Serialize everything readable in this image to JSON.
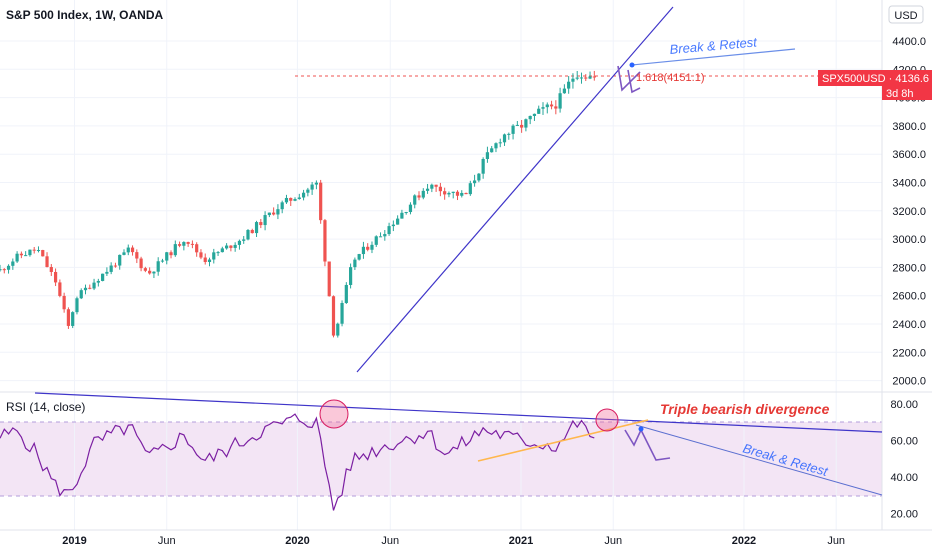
{
  "header": {
    "title": "S&P 500 Index, 1W, OANDA",
    "currency_button": "USD"
  },
  "price_scale": {
    "ticks": [
      "4400.0",
      "4200.0",
      "4000.0",
      "3800.0",
      "3600.0",
      "3400.0",
      "3200.0",
      "3000.0",
      "2800.0",
      "2600.0",
      "2400.0",
      "2200.0",
      "2000.0"
    ],
    "last_price_label": "SPX500USD · 4136.6",
    "countdown_label": "3d 8h"
  },
  "rsi_pane": {
    "label": "RSI (14, close)",
    "ticks": [
      "80.00",
      "60.00",
      "40.00",
      "20.00"
    ]
  },
  "time_axis": {
    "ticks": [
      "2019",
      "Jun",
      "2020",
      "Jun",
      "2021",
      "Jun",
      "2022",
      "Jun"
    ]
  },
  "annotations": {
    "break_retest_price": "Break & Retest",
    "break_retest_rsi": "Break & Retest",
    "divergence": "Triple bearish divergence",
    "fib_level": "1.618(4151.1)"
  },
  "colors": {
    "up": "#26a69a",
    "down": "#ef5350",
    "trendline": "#3f35c9",
    "rsi_line": "#7b1fa2",
    "rsi_band": "#f3e5f5",
    "price_tag": "#f23645",
    "orange_line": "#ffb74d"
  },
  "chart_data": [
    {
      "type": "candlestick",
      "title": "S&P 500 Index, 1W, OANDA",
      "x_range": [
        "2018-09",
        "2022-08"
      ],
      "ylim": [
        1950,
        4500
      ],
      "last_price": 4136.6,
      "fib_extension": 4151.1,
      "anchors": [
        {
          "date": "2018-09",
          "close": 2780
        },
        {
          "date": "2018-10",
          "close": 2880
        },
        {
          "date": "2018-11",
          "close": 2930
        },
        {
          "date": "2018-12",
          "close": 2700
        },
        {
          "date": "2018-12-24",
          "close": 2350
        },
        {
          "date": "2019-01",
          "close": 2580
        },
        {
          "date": "2019-03",
          "close": 2800
        },
        {
          "date": "2019-04",
          "close": 2930
        },
        {
          "date": "2019-05",
          "close": 2750
        },
        {
          "date": "2019-07",
          "close": 3010
        },
        {
          "date": "2019-08",
          "close": 2850
        },
        {
          "date": "2019-10",
          "close": 3000
        },
        {
          "date": "2019-12",
          "close": 3230
        },
        {
          "date": "2020-02",
          "close": 3390
        },
        {
          "date": "2020-03",
          "close": 2300
        },
        {
          "date": "2020-04",
          "close": 2850
        },
        {
          "date": "2020-06",
          "close": 3100
        },
        {
          "date": "2020-08",
          "close": 3380
        },
        {
          "date": "2020-10",
          "close": 3300
        },
        {
          "date": "2020-11",
          "close": 3550
        },
        {
          "date": "2020-12",
          "close": 3730
        },
        {
          "date": "2021-01",
          "close": 3800
        },
        {
          "date": "2021-02",
          "close": 3900
        },
        {
          "date": "2021-03",
          "close": 3960
        },
        {
          "date": "2021-04",
          "close": 4180
        },
        {
          "date": "2021-05",
          "close": 4137
        }
      ]
    },
    {
      "type": "line",
      "title": "RSI (14, close)",
      "ylim": [
        15,
        85
      ],
      "bands": [
        30,
        70
      ],
      "anchors": [
        {
          "date": "2018-09",
          "rsi": 62
        },
        {
          "date": "2018-10",
          "rsi": 65
        },
        {
          "date": "2018-11",
          "rsi": 52
        },
        {
          "date": "2018-12",
          "rsi": 35
        },
        {
          "date": "2018-12-24",
          "rsi": 30
        },
        {
          "date": "2019-02",
          "rsi": 58
        },
        {
          "date": "2019-04",
          "rsi": 68
        },
        {
          "date": "2019-05",
          "rsi": 50
        },
        {
          "date": "2019-07",
          "rsi": 63
        },
        {
          "date": "2019-08",
          "rsi": 48
        },
        {
          "date": "2019-11",
          "rsi": 65
        },
        {
          "date": "2020-01",
          "rsi": 72
        },
        {
          "date": "2020-02",
          "rsi": 70
        },
        {
          "date": "2020-03",
          "rsi": 22
        },
        {
          "date": "2020-04",
          "rsi": 50
        },
        {
          "date": "2020-06",
          "rsi": 58
        },
        {
          "date": "2020-08",
          "rsi": 65
        },
        {
          "date": "2020-09",
          "rsi": 52
        },
        {
          "date": "2020-11",
          "rsi": 66
        },
        {
          "date": "2021-01",
          "rsi": 60
        },
        {
          "date": "2021-03",
          "rsi": 57
        },
        {
          "date": "2021-04",
          "rsi": 70
        },
        {
          "date": "2021-05",
          "rsi": 62
        }
      ]
    }
  ]
}
